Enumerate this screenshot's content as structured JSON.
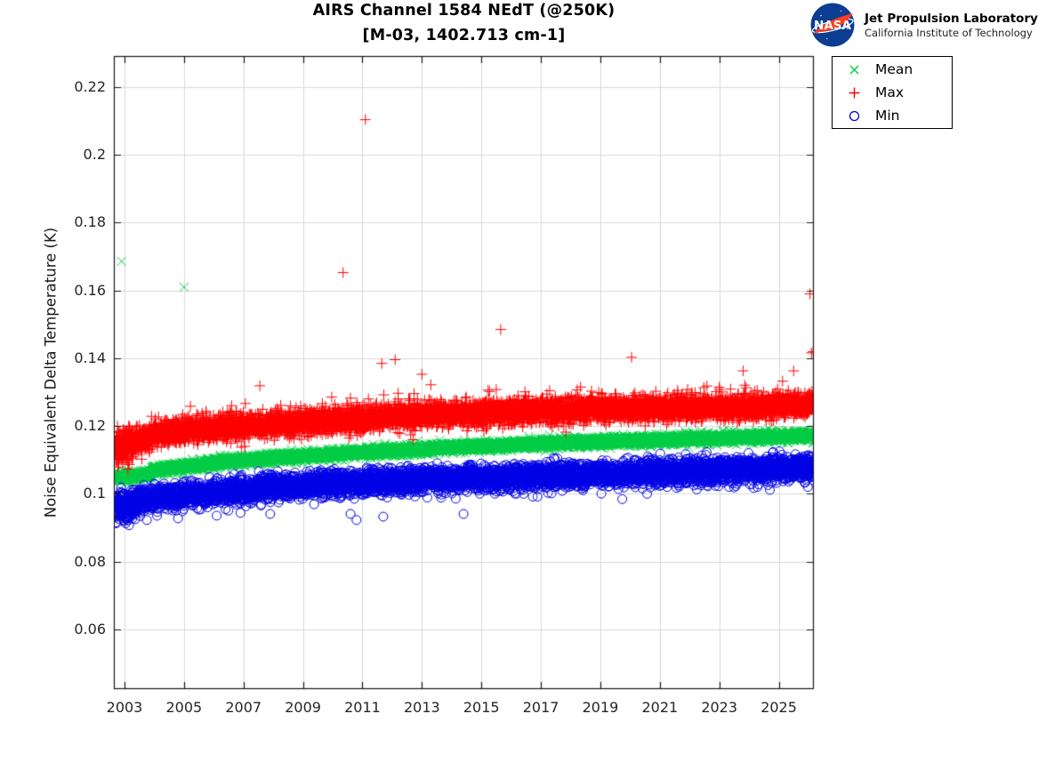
{
  "header": {
    "title_line1": "AIRS Channel 1584 NEdT (@250K)",
    "title_line2": "[M-03, 1402.713 cm-1]"
  },
  "branding": {
    "logo_text": "NASA",
    "logo_blue": "#0b3d91",
    "logo_red": "#fc3d21",
    "org_line1": "Jet Propulsion Laboratory",
    "org_line2": "California Institute of Technology"
  },
  "chart_data": {
    "type": "scatter",
    "title": "AIRS Channel 1584 NEdT (@250K)",
    "subtitle": "[M-03, 1402.713 cm-1]",
    "xlabel": "",
    "ylabel": "Noise Equivalent Delta Temperature (K)",
    "xlim": [
      2002.641,
      2026.18
    ],
    "ylim": [
      0.042426,
      0.22918
    ],
    "grid": true,
    "grid_color": "#d9d9d9",
    "axis_color": "#151515",
    "tick_label_color": "#262626",
    "legend_position": "top-right-outside",
    "xticks": {
      "values": [
        2003,
        2005,
        2007,
        2009,
        2011,
        2013,
        2015,
        2017,
        2019,
        2021,
        2023,
        2025
      ],
      "labels": [
        "2003",
        "2005",
        "2007",
        "2009",
        "2011",
        "2013",
        "2015",
        "2017",
        "2019",
        "2021",
        "2023",
        "2025"
      ]
    },
    "yticks": {
      "values": [
        0.06,
        0.08,
        0.1,
        0.12,
        0.14,
        0.16,
        0.18,
        0.2,
        0.22
      ],
      "labels": [
        "0.06",
        "0.08",
        "0.1",
        "0.12",
        "0.14",
        "0.16",
        "0.18",
        "0.2",
        "0.22"
      ]
    },
    "points_per_year": 300,
    "x_data_range": [
      2002.68,
      2026.18
    ],
    "series": [
      {
        "name": "Mean",
        "marker": "x",
        "color": "#00cc44",
        "marker_px": 5,
        "sigma": 0.0007,
        "trend": [
          [
            2002.68,
            0.1048
          ],
          [
            2003.2,
            0.1052
          ],
          [
            2003.88,
            0.1058
          ],
          [
            2003.95,
            0.107
          ],
          [
            2005,
            0.1081
          ],
          [
            2006,
            0.1091
          ],
          [
            2007,
            0.1099
          ],
          [
            2008,
            0.1106
          ],
          [
            2010,
            0.1117
          ],
          [
            2012,
            0.1127
          ],
          [
            2014,
            0.1137
          ],
          [
            2016,
            0.1145
          ],
          [
            2018,
            0.1151
          ],
          [
            2020,
            0.1157
          ],
          [
            2022,
            0.1162
          ],
          [
            2024,
            0.1167
          ],
          [
            2026.18,
            0.1173
          ]
        ],
        "outliers": [
          [
            2002.9,
            0.1686
          ],
          [
            2005.0,
            0.161
          ]
        ]
      },
      {
        "name": "Max",
        "marker": "+",
        "color": "#fe0000",
        "marker_px": 6,
        "sigma": 0.0017,
        "spike_prob": 0.03,
        "spike_scale": 0.0018,
        "early_until": 2003.3,
        "early_mult": 1.6,
        "trend": [
          [
            2002.68,
            0.1128
          ],
          [
            2003.0,
            0.1146
          ],
          [
            2003.5,
            0.1158
          ],
          [
            2003.88,
            0.1164
          ],
          [
            2003.95,
            0.1176
          ],
          [
            2005,
            0.1186
          ],
          [
            2006,
            0.1193
          ],
          [
            2007,
            0.1199
          ],
          [
            2008,
            0.1206
          ],
          [
            2010,
            0.1218
          ],
          [
            2012,
            0.1228
          ],
          [
            2014,
            0.1237
          ],
          [
            2016,
            0.1242
          ],
          [
            2018,
            0.1247
          ],
          [
            2020,
            0.1251
          ],
          [
            2022,
            0.1254
          ],
          [
            2024,
            0.1257
          ],
          [
            2026.18,
            0.1262
          ]
        ],
        "outliers": [
          [
            2007.55,
            0.1319
          ],
          [
            2010.35,
            0.1653
          ],
          [
            2011.1,
            0.2104
          ],
          [
            2011.65,
            0.1385
          ],
          [
            2012.1,
            0.1396
          ],
          [
            2012.2,
            0.1297
          ],
          [
            2013.0,
            0.1353
          ],
          [
            2013.3,
            0.1322
          ],
          [
            2015.5,
            0.1308
          ],
          [
            2015.65,
            0.1485
          ],
          [
            2018.7,
            0.1303
          ],
          [
            2019.5,
            0.1295
          ],
          [
            2020.05,
            0.1403
          ],
          [
            2021.6,
            0.1305
          ],
          [
            2023.0,
            0.1315
          ],
          [
            2023.8,
            0.1363
          ],
          [
            2023.9,
            0.1313
          ],
          [
            2025.5,
            0.1363
          ],
          [
            2026.05,
            0.159
          ],
          [
            2026.1,
            0.1416
          ],
          [
            2026.16,
            0.142
          ]
        ]
      },
      {
        "name": "Min",
        "marker": "o",
        "color": "#0000e6",
        "marker_px": 5,
        "sigma": 0.0017,
        "dip_prob": 0.012,
        "dip_scale": 0.0015,
        "early_until": 2003.4,
        "early_mult": 1.3,
        "early_bias": -0.0005,
        "trend": [
          [
            2002.68,
            0.0968
          ],
          [
            2003.0,
            0.0972
          ],
          [
            2003.5,
            0.0981
          ],
          [
            2004,
            0.099
          ],
          [
            2005,
            0.0998
          ],
          [
            2006,
            0.1005
          ],
          [
            2007,
            0.1012
          ],
          [
            2008,
            0.1019
          ],
          [
            2010,
            0.1031
          ],
          [
            2012,
            0.1037
          ],
          [
            2014,
            0.1044
          ],
          [
            2016,
            0.105
          ],
          [
            2018,
            0.1056
          ],
          [
            2020,
            0.1061
          ],
          [
            2022,
            0.1066
          ],
          [
            2024,
            0.1072
          ],
          [
            2026.18,
            0.1078
          ]
        ],
        "outliers": [
          [
            2003.75,
            0.0923
          ],
          [
            2004.8,
            0.0928
          ],
          [
            2006.1,
            0.0936
          ],
          [
            2006.9,
            0.0944
          ],
          [
            2007.9,
            0.0941
          ],
          [
            2010.6,
            0.0941
          ],
          [
            2010.8,
            0.0923
          ],
          [
            2011.7,
            0.0933
          ],
          [
            2014.4,
            0.0941
          ],
          [
            2024.7,
            0.1012
          ]
        ]
      }
    ]
  }
}
